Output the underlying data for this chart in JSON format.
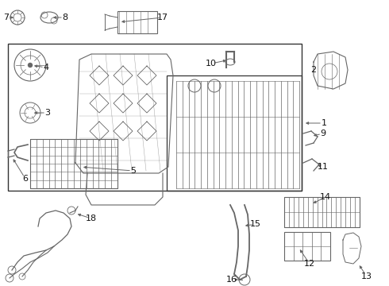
{
  "bg_color": "#ffffff",
  "lc": "#666666",
  "lbl": "#111111",
  "fig_width": 4.9,
  "fig_height": 3.6,
  "dpi": 100,
  "xlim": [
    0,
    490
  ],
  "ylim": [
    0,
    360
  ]
}
